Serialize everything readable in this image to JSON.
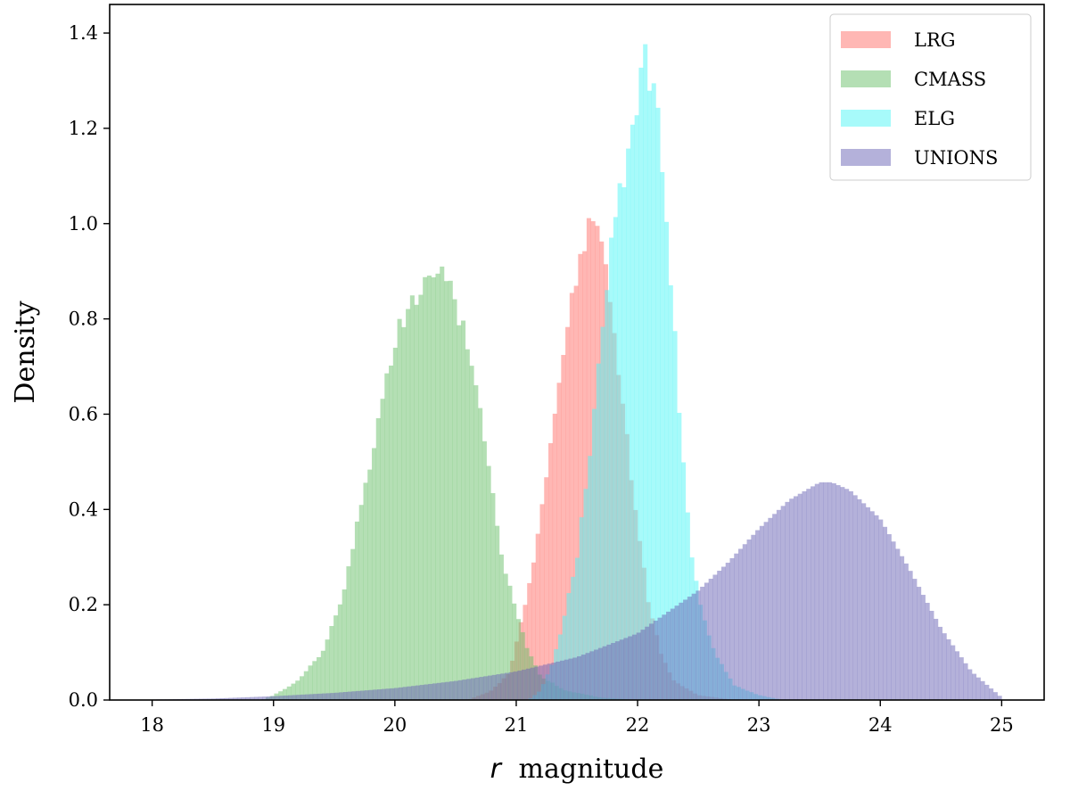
{
  "chart_data": {
    "type": "histogram",
    "title": "",
    "xlabel_var": "r",
    "xlabel_rest": "magnitude",
    "ylabel": "Density",
    "xlim": [
      17.65,
      25.35
    ],
    "ylim": [
      0,
      1.46
    ],
    "xticks": [
      18,
      19,
      20,
      21,
      22,
      23,
      24,
      25
    ],
    "xtick_labels": [
      "18",
      "19",
      "20",
      "21",
      "22",
      "23",
      "24",
      "25"
    ],
    "yticks": [
      0.0,
      0.2,
      0.4,
      0.6,
      0.8,
      1.0,
      1.2,
      1.4
    ],
    "ytick_labels": [
      "0.0",
      "0.2",
      "0.4",
      "0.6",
      "0.8",
      "1.0",
      "1.2",
      "1.4"
    ],
    "grid": false,
    "legend_position": "top-right",
    "bin_width": 0.035,
    "opacity": 0.5,
    "series": [
      {
        "name": "LRG",
        "color": "#ff6f69",
        "range": [
          20.6,
          22.8
        ],
        "profile": [
          [
            20.6,
            0
          ],
          [
            20.8,
            0.02
          ],
          [
            20.95,
            0.06
          ],
          [
            21.05,
            0.18
          ],
          [
            21.15,
            0.3
          ],
          [
            21.3,
            0.58
          ],
          [
            21.45,
            0.82
          ],
          [
            21.6,
            1.01
          ],
          [
            21.7,
            0.97
          ],
          [
            21.8,
            0.8
          ],
          [
            21.9,
            0.58
          ],
          [
            22.0,
            0.36
          ],
          [
            22.1,
            0.19
          ],
          [
            22.2,
            0.09
          ],
          [
            22.3,
            0.04
          ],
          [
            22.5,
            0.01
          ],
          [
            22.8,
            0
          ]
        ],
        "seed": 3
      },
      {
        "name": "CMASS",
        "color": "#6abf69",
        "range": [
          18.9,
          22.0
        ],
        "profile": [
          [
            18.9,
            0
          ],
          [
            19.0,
            0.01
          ],
          [
            19.2,
            0.04
          ],
          [
            19.4,
            0.1
          ],
          [
            19.55,
            0.2
          ],
          [
            19.7,
            0.38
          ],
          [
            19.8,
            0.5
          ],
          [
            19.9,
            0.64
          ],
          [
            20.0,
            0.75
          ],
          [
            20.1,
            0.82
          ],
          [
            20.2,
            0.87
          ],
          [
            20.3,
            0.89
          ],
          [
            20.4,
            0.88
          ],
          [
            20.5,
            0.83
          ],
          [
            20.6,
            0.74
          ],
          [
            20.7,
            0.6
          ],
          [
            20.8,
            0.44
          ],
          [
            20.9,
            0.28
          ],
          [
            21.0,
            0.18
          ],
          [
            21.1,
            0.1
          ],
          [
            21.2,
            0.05
          ],
          [
            21.4,
            0.02
          ],
          [
            21.7,
            0.005
          ],
          [
            22.0,
            0
          ]
        ],
        "seed": 7
      },
      {
        "name": "ELG",
        "color": "#4ff5f5",
        "range": [
          21.1,
          23.2
        ],
        "profile": [
          [
            21.1,
            0
          ],
          [
            21.2,
            0.02
          ],
          [
            21.3,
            0.08
          ],
          [
            21.4,
            0.18
          ],
          [
            21.5,
            0.3
          ],
          [
            21.6,
            0.5
          ],
          [
            21.7,
            0.78
          ],
          [
            21.8,
            0.98
          ],
          [
            21.9,
            1.12
          ],
          [
            22.0,
            1.27
          ],
          [
            22.05,
            1.34
          ],
          [
            22.1,
            1.3
          ],
          [
            22.15,
            1.25
          ],
          [
            22.2,
            1.15
          ],
          [
            22.25,
            0.98
          ],
          [
            22.3,
            0.8
          ],
          [
            22.35,
            0.58
          ],
          [
            22.4,
            0.42
          ],
          [
            22.45,
            0.3
          ],
          [
            22.5,
            0.22
          ],
          [
            22.6,
            0.12
          ],
          [
            22.7,
            0.07
          ],
          [
            22.8,
            0.03
          ],
          [
            23.0,
            0.01
          ],
          [
            23.2,
            0
          ]
        ],
        "seed": 11
      },
      {
        "name": "UNIONS",
        "color": "#6a64b6",
        "range": [
          18.0,
          25.0
        ],
        "profile": [
          [
            18.0,
            0.001
          ],
          [
            18.5,
            0.003
          ],
          [
            19.0,
            0.008
          ],
          [
            19.5,
            0.015
          ],
          [
            20.0,
            0.025
          ],
          [
            20.5,
            0.04
          ],
          [
            21.0,
            0.06
          ],
          [
            21.5,
            0.09
          ],
          [
            22.0,
            0.14
          ],
          [
            22.5,
            0.23
          ],
          [
            22.75,
            0.29
          ],
          [
            23.0,
            0.36
          ],
          [
            23.25,
            0.42
          ],
          [
            23.5,
            0.457
          ],
          [
            23.6,
            0.457
          ],
          [
            23.75,
            0.44
          ],
          [
            24.0,
            0.38
          ],
          [
            24.25,
            0.27
          ],
          [
            24.5,
            0.15
          ],
          [
            24.75,
            0.06
          ],
          [
            25.0,
            0.005
          ]
        ],
        "seed": 0
      }
    ]
  }
}
